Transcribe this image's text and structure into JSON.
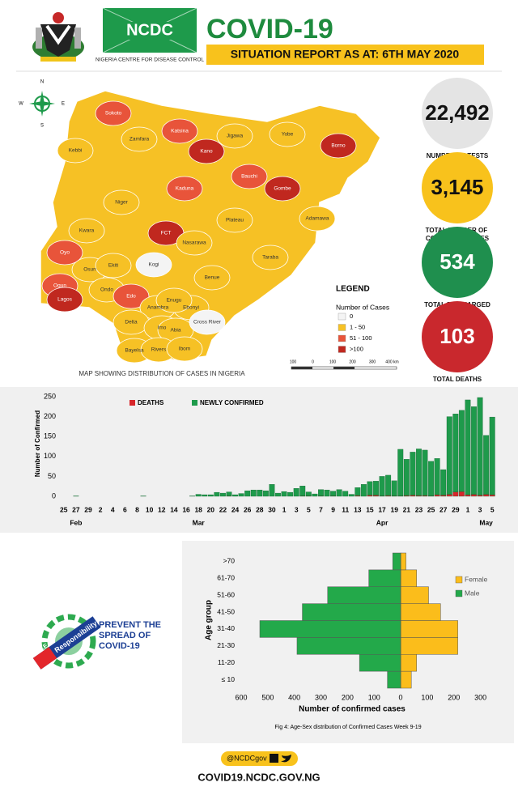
{
  "header": {
    "logo_text": "NCDC",
    "org": "NIGERIA CENTRE FOR DISEASE CONTROL",
    "title": "COVID-19",
    "subtitle": "SITUATION REPORT AS AT: 6TH MAY 2020"
  },
  "map": {
    "caption": "MAP SHOWING DISTRIBUTION OF CASES IN NIGERIA",
    "legend_title": "LEGEND",
    "legend_subtitle": "Number of Cases",
    "legend": [
      {
        "label": "0",
        "color": "#f4f4f4"
      },
      {
        "label": "1 - 50",
        "color": "#f6c125"
      },
      {
        "label": "51 - 100",
        "color": "#e8543a"
      },
      {
        "label": ">100",
        "color": "#c0281f"
      }
    ],
    "states": [
      {
        "name": "Sokoto",
        "category": 2
      },
      {
        "name": "Zamfara",
        "category": 1
      },
      {
        "name": "Katsina",
        "category": 2
      },
      {
        "name": "Kano",
        "category": 3
      },
      {
        "name": "Jigawa",
        "category": 1
      },
      {
        "name": "Yobe",
        "category": 1
      },
      {
        "name": "Borno",
        "category": 3
      },
      {
        "name": "Kebbi",
        "category": 1
      },
      {
        "name": "Bauchi",
        "category": 2
      },
      {
        "name": "Gombe",
        "category": 3
      },
      {
        "name": "Kaduna",
        "category": 2
      },
      {
        "name": "Niger",
        "category": 1
      },
      {
        "name": "Adamawa",
        "category": 1
      },
      {
        "name": "FCT",
        "category": 3
      },
      {
        "name": "Plateau",
        "category": 1
      },
      {
        "name": "Kwara",
        "category": 1
      },
      {
        "name": "Nasarawa",
        "category": 1
      },
      {
        "name": "Oyo",
        "category": 2
      },
      {
        "name": "Kogi",
        "category": 0
      },
      {
        "name": "Taraba",
        "category": 1
      },
      {
        "name": "Osun",
        "category": 1
      },
      {
        "name": "Ekiti",
        "category": 1
      },
      {
        "name": "Ondo",
        "category": 1
      },
      {
        "name": "Benue",
        "category": 1
      },
      {
        "name": "Ogun",
        "category": 2
      },
      {
        "name": "Edo",
        "category": 2
      },
      {
        "name": "Lagos",
        "category": 3
      },
      {
        "name": "Anambra",
        "category": 1
      },
      {
        "name": "Ebonyi",
        "category": 1
      },
      {
        "name": "Enugu",
        "category": 1
      },
      {
        "name": "Delta",
        "category": 1
      },
      {
        "name": "Imo",
        "category": 1
      },
      {
        "name": "Abia",
        "category": 1
      },
      {
        "name": "Cross River",
        "category": 0
      },
      {
        "name": "Bayelsa",
        "category": 1
      },
      {
        "name": "Rivers",
        "category": 1
      },
      {
        "name": "Ibom",
        "category": 1
      }
    ],
    "scale": [
      "100",
      "0",
      "100",
      "200",
      "300",
      "400 km"
    ],
    "compass": [
      "N",
      "S",
      "E",
      "W"
    ]
  },
  "stats": [
    {
      "value": "22,492",
      "label": "NUMBER OF TESTS",
      "color": "#e4e4e4",
      "text_color": "#111111"
    },
    {
      "value": "3,145",
      "label": "TOTAL NUMBER OF CONFIRMED CASES",
      "color": "#f8c21c",
      "text_color": "#111111"
    },
    {
      "value": "534",
      "label": "TOTAL DISCHARGED",
      "color": "#1f8f4e",
      "text_color": "#ffffff"
    },
    {
      "value": "103",
      "label": "TOTAL DEATHS",
      "color": "#c9282d",
      "text_color": "#ffffff"
    }
  ],
  "chart_data": [
    {
      "type": "bar",
      "stacked": true,
      "y_label": "Number of Confirmed",
      "categories": [
        "25",
        null,
        "27",
        null,
        "29",
        null,
        "2",
        null,
        "4",
        null,
        "6",
        null,
        "8",
        null,
        "10",
        null,
        "12",
        null,
        "14",
        null,
        "16",
        null,
        "18",
        null,
        "20",
        null,
        "22",
        null,
        "24",
        null,
        "26",
        null,
        "28",
        null,
        "30",
        null,
        "1",
        null,
        "3",
        null,
        "5",
        null,
        "7",
        null,
        "9",
        null,
        "11",
        null,
        "13",
        null,
        "15",
        null,
        "17",
        null,
        "19",
        null,
        "21",
        null,
        "23",
        null,
        "25",
        null,
        "27",
        null,
        "29",
        null,
        "1",
        null,
        "3",
        null,
        "5"
      ],
      "months": [
        "Feb",
        "Mar",
        "Apr",
        "May"
      ],
      "series": [
        {
          "name": "DEATHS",
          "color": "#d7262b",
          "values": [
            0,
            0,
            0,
            0,
            0,
            0,
            0,
            0,
            0,
            0,
            0,
            0,
            0,
            0,
            0,
            0,
            0,
            0,
            0,
            0,
            0,
            0,
            0,
            0,
            0,
            0,
            0,
            1,
            0,
            0,
            0,
            0,
            0,
            0,
            0,
            0,
            0,
            0,
            0,
            1,
            1,
            0,
            1,
            0,
            1,
            0,
            0,
            0,
            2,
            0,
            3,
            3,
            1,
            2,
            1,
            1,
            2,
            3,
            2,
            2,
            1,
            4,
            3,
            5,
            11,
            12,
            4,
            5,
            3,
            5,
            4
          ]
        },
        {
          "name": "NEWLY CONFIRMED",
          "color": "#1e9a4b",
          "values": [
            0,
            0,
            1,
            0,
            0,
            0,
            0,
            0,
            0,
            0,
            0,
            0,
            0,
            1,
            0,
            0,
            0,
            0,
            0,
            0,
            0,
            1,
            5,
            4,
            4,
            10,
            8,
            10,
            4,
            7,
            14,
            16,
            16,
            14,
            30,
            8,
            12,
            10,
            20,
            25,
            10,
            6,
            16,
            16,
            12,
            17,
            13,
            5,
            20,
            30,
            34,
            35,
            49,
            51,
            38,
            117,
            91,
            108,
            117,
            114,
            87,
            91,
            64,
            195,
            196,
            204,
            238,
            220,
            245,
            148,
            195
          ]
        }
      ],
      "ylim": [
        0,
        250
      ],
      "yticks": [
        0,
        50,
        100,
        150,
        200,
        250
      ]
    },
    {
      "type": "pyramid",
      "x_label": "Number of confirmed cases",
      "y_label": "Age group",
      "caption": "Fig 4: Age-Sex distribution of Confirmed Cases Week 9-19",
      "categories": [
        "≤ 10",
        "11-20",
        "21-30",
        "31-40",
        "41-50",
        "51-60",
        "61-70",
        ">70"
      ],
      "series": [
        {
          "name": "Female",
          "color": "#fbbd1b",
          "values": [
            40,
            60,
            215,
            215,
            150,
            105,
            60,
            20
          ]
        },
        {
          "name": "Male",
          "color": "#23a94a",
          "values": [
            50,
            155,
            390,
            530,
            370,
            275,
            120,
            30
          ]
        }
      ],
      "xlim": [
        -600,
        350
      ],
      "xticks": [
        {
          "value": -600,
          "label": "600"
        },
        {
          "value": -500,
          "label": "500"
        },
        {
          "value": -400,
          "label": "400"
        },
        {
          "value": -300,
          "label": "300"
        },
        {
          "value": -200,
          "label": "200"
        },
        {
          "value": -100,
          "label": "100"
        },
        0,
        100,
        200,
        300
      ]
    }
  ],
  "badge": {
    "take": "TAKE",
    "responsibility": "Responsibility",
    "message": "PREVENT THE SPREAD OF COVID-19"
  },
  "footer": {
    "handle": "@NCDCgov",
    "url": "COVID19.NCDC.GOV.NG"
  }
}
